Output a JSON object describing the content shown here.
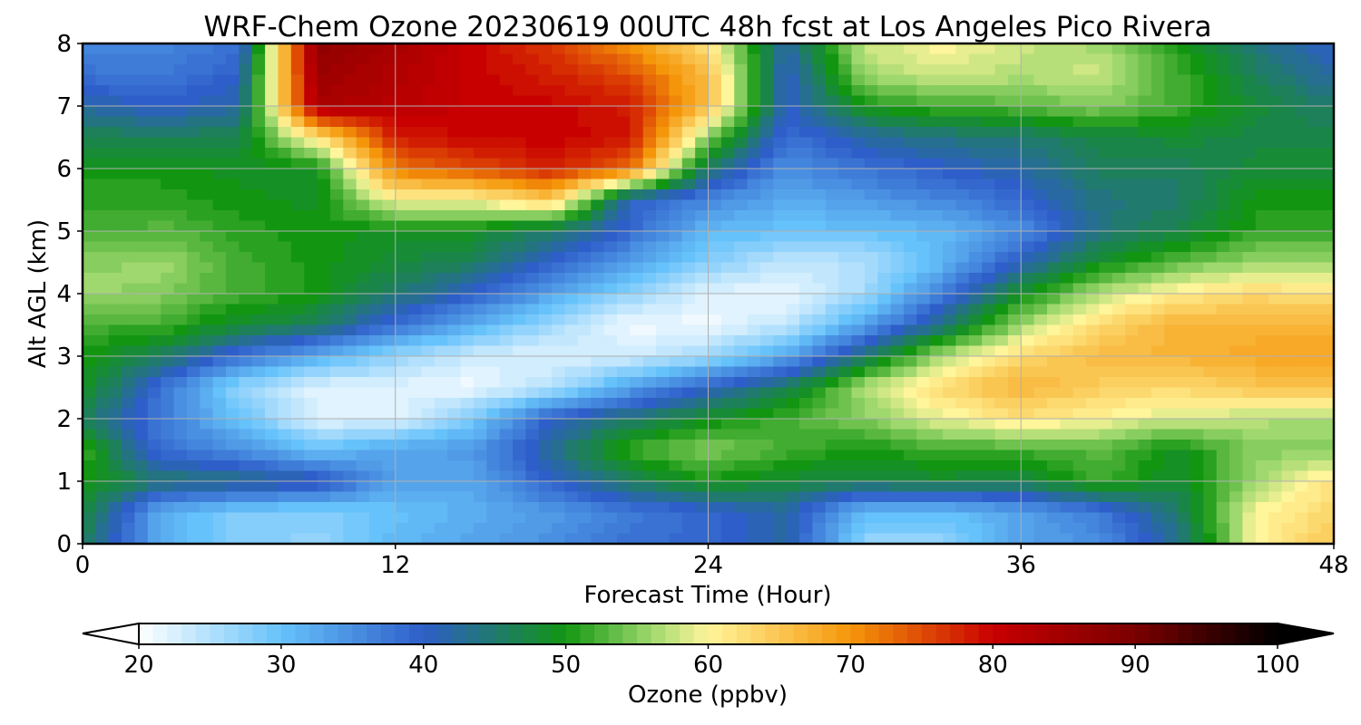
{
  "chart_data": {
    "type": "heatmap",
    "title": "WRF-Chem Ozone  20230619 00UTC 48h fcst at Los Angeles Pico Rivera",
    "xlabel": "Forecast Time (Hour)",
    "ylabel": "Alt AGL (km)",
    "xlim": [
      0,
      48
    ],
    "ylim": [
      0,
      8
    ],
    "xticks": [
      0,
      12,
      24,
      36,
      48
    ],
    "yticks": [
      0,
      1,
      2,
      3,
      4,
      5,
      6,
      7,
      8
    ],
    "grid": true,
    "colorbar": {
      "label": "Ozone  (ppbv)",
      "min": 20,
      "max": 100,
      "ticks": [
        20,
        30,
        40,
        50,
        60,
        70,
        80,
        90,
        100
      ],
      "extend": "both",
      "color_stops": [
        {
          "value": 20,
          "color": "#ffffff"
        },
        {
          "value": 30,
          "color": "#66c2fa"
        },
        {
          "value": 40,
          "color": "#2e5ec9"
        },
        {
          "value": 50,
          "color": "#129612"
        },
        {
          "value": 56,
          "color": "#9fd86e"
        },
        {
          "value": 60,
          "color": "#fff59a"
        },
        {
          "value": 70,
          "color": "#f5960a"
        },
        {
          "value": 80,
          "color": "#c80000"
        },
        {
          "value": 90,
          "color": "#7a0000"
        },
        {
          "value": 100,
          "color": "#000000"
        }
      ]
    },
    "x_hours": [
      0,
      3,
      6,
      9,
      12,
      15,
      18,
      21,
      24,
      27,
      30,
      33,
      36,
      39,
      42,
      45,
      48
    ],
    "z_km": [
      0,
      0.5,
      1,
      1.5,
      2,
      2.5,
      3,
      3.5,
      4,
      4.5,
      5,
      5.5,
      6,
      6.5,
      7,
      7.5,
      8
    ],
    "ozone_ppbv": [
      [
        46,
        32,
        28,
        27,
        31,
        33,
        35,
        38,
        39,
        42,
        27,
        27,
        33,
        35,
        43,
        60,
        65
      ],
      [
        48,
        32,
        28,
        28,
        30,
        32,
        34,
        37,
        39,
        42,
        30,
        30,
        33,
        37,
        45,
        60,
        63
      ],
      [
        50,
        45,
        44,
        42,
        33,
        33,
        40,
        46,
        50,
        48,
        47,
        48,
        47,
        52,
        48,
        56,
        62
      ],
      [
        52,
        38,
        35,
        30,
        33,
        34,
        43,
        52,
        55,
        52,
        50,
        52,
        52,
        53,
        49,
        55,
        55
      ],
      [
        46,
        37,
        30,
        22,
        22,
        29,
        40,
        45,
        49,
        52,
        55,
        59,
        62,
        60,
        58,
        57,
        56
      ],
      [
        50,
        38,
        27,
        22,
        22,
        21,
        25,
        33,
        40,
        46,
        57,
        63,
        67,
        64,
        63,
        65,
        65
      ],
      [
        50,
        46,
        38,
        32,
        27,
        23,
        22,
        23,
        26,
        33,
        45,
        57,
        63,
        66,
        67,
        68,
        68
      ],
      [
        52,
        52,
        48,
        46,
        38,
        32,
        26,
        21,
        21,
        24,
        33,
        44,
        56,
        63,
        67,
        67,
        67
      ],
      [
        56,
        55,
        52,
        50,
        45,
        40,
        33,
        27,
        22,
        21,
        26,
        37,
        49,
        57,
        61,
        63,
        62
      ],
      [
        55,
        56,
        52,
        50,
        48,
        46,
        40,
        33,
        28,
        24,
        25,
        31,
        41,
        49,
        53,
        56,
        56
      ],
      [
        52,
        53,
        51,
        50,
        49,
        49,
        45,
        39,
        31,
        30,
        30,
        31,
        35,
        44,
        47,
        51,
        51
      ],
      [
        51,
        51,
        50,
        49,
        60,
        60,
        65,
        40,
        36,
        32,
        34,
        36,
        39,
        44,
        45,
        50,
        50
      ],
      [
        50,
        50,
        49,
        49,
        72,
        75,
        78,
        73,
        45,
        35,
        38,
        40,
        42,
        46,
        46,
        48,
        48
      ],
      [
        47,
        46,
        47,
        62,
        78,
        80,
        80,
        79,
        55,
        38,
        42,
        44,
        45,
        47,
        48,
        47,
        47
      ],
      [
        42,
        40,
        42,
        84,
        82,
        80,
        80,
        78,
        66,
        40,
        50,
        52,
        53,
        55,
        52,
        48,
        45
      ],
      [
        38,
        37,
        40,
        86,
        83,
        80,
        78,
        75,
        66,
        40,
        56,
        58,
        57,
        58,
        52,
        46,
        42
      ],
      [
        36,
        36,
        38,
        87,
        84,
        80,
        76,
        70,
        62,
        42,
        58,
        60,
        58,
        56,
        50,
        44,
        40
      ]
    ]
  }
}
